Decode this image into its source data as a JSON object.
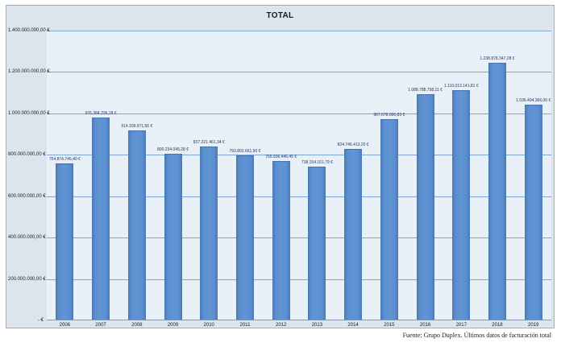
{
  "chart_data": {
    "type": "bar",
    "title": "TOTAL",
    "xlabel": "",
    "ylabel": "",
    "ylim": [
      0,
      1400000000
    ],
    "grid": true,
    "legend": "none",
    "currency": "EUR",
    "categories": [
      "2006",
      "2007",
      "2008",
      "2009",
      "2010",
      "2011",
      "2012",
      "2013",
      "2014",
      "2015",
      "2016",
      "2017",
      "2018",
      "2019"
    ],
    "values": [
      754874745.4,
      976384236.18,
      914109971.56,
      800234045.28,
      837221461.34,
      793802661.9,
      765936446.45,
      738154151.79,
      824746413.2,
      967678000.83,
      1088788758.11,
      1110013141.81,
      1238878347.28,
      1036494366.0
    ],
    "value_labels": [
      "754.874.745,40 €",
      "976.384.236,18 €",
      "914.109.971,56 €",
      "800.234.045,28 €",
      "837.221.461,34 €",
      "793.802.661,90 €",
      "765.936.446,45 €",
      "738.154.151,79 €",
      "824.746.413,20 €",
      "967.678.000,83 €",
      "1.088.788.758,11 €",
      "1.110.013.141,81 €",
      "1.238.878.347,28 €",
      "1.036.494.366,00 €"
    ],
    "y_ticks": [
      {
        "label": "1.400.000.000,00 €",
        "value": 1400000000
      },
      {
        "label": "1.200.000.000,00 €",
        "value": 1200000000
      },
      {
        "label": "1.000.000.000,00 €",
        "value": 1000000000
      },
      {
        "label": "800.000.000,00 €",
        "value": 800000000
      },
      {
        "label": "600.000.000,00 €",
        "value": 600000000
      },
      {
        "label": "400.000.000,00 €",
        "value": 400000000
      },
      {
        "label": "200.000.000,00 €",
        "value": 200000000
      },
      {
        "label": "- €",
        "value": 0
      }
    ],
    "source_note": "Fuente: Grupo Duplex. Últimos datos de facturación total",
    "colors": {
      "bar_fill": "#5c8fd0",
      "bar_edge": "#4474ad",
      "chart_background": "#dce5ee",
      "plot_background": "#e9f0f8",
      "gridline": "#7da5d6",
      "label_text": "#1f3864"
    }
  }
}
